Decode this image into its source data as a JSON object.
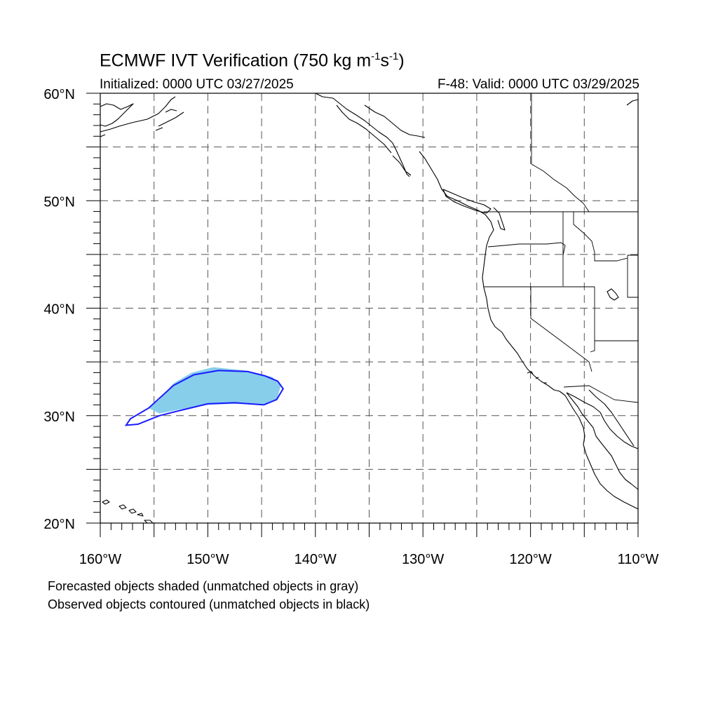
{
  "title": {
    "main": "ECMWF IVT Verification (750 kg m",
    "sup1": "-1",
    "mid": "s",
    "sup2": "-1",
    "end": ")"
  },
  "subtitle": {
    "left": "Initialized: 0000 UTC 03/27/2025",
    "right": "F-48: Valid: 0000 UTC 03/29/2025"
  },
  "footnotes": [
    "Forecasted objects shaded (unmatched objects in gray)",
    "Observed objects contoured (unmatched objects in black)"
  ],
  "map": {
    "lon_range": [
      -160,
      -110
    ],
    "lat_range": [
      20,
      60
    ],
    "grid_lon_step": 5,
    "grid_lat_step": 5,
    "lat_tick_labels": [
      {
        "value": 60,
        "label": "60°N"
      },
      {
        "value": 50,
        "label": "50°N"
      },
      {
        "value": 40,
        "label": "40°N"
      },
      {
        "value": 30,
        "label": "30°N"
      },
      {
        "value": 20,
        "label": "20°N"
      }
    ],
    "lon_tick_labels": [
      {
        "value": -160,
        "label": "160°W"
      },
      {
        "value": -150,
        "label": "150°W"
      },
      {
        "value": -140,
        "label": "140°W"
      },
      {
        "value": -130,
        "label": "130°W"
      },
      {
        "value": -120,
        "label": "120°W"
      },
      {
        "value": -110,
        "label": "110°W"
      }
    ],
    "colors": {
      "forecast_fill": "#87ceeb",
      "observed_contour": "#1a1aff",
      "coastline": "#000000",
      "grid": "#555555"
    },
    "forecast_object": [
      [
        -155.5,
        30.7
      ],
      [
        -154.5,
        31.5
      ],
      [
        -153.2,
        33.0
      ],
      [
        -151.5,
        34.0
      ],
      [
        -149.5,
        34.5
      ],
      [
        -146.5,
        34.2
      ],
      [
        -144.0,
        33.6
      ],
      [
        -143.2,
        32.8
      ],
      [
        -143.6,
        31.5
      ],
      [
        -145.0,
        31.0
      ],
      [
        -147.5,
        31.1
      ],
      [
        -150.0,
        31.0
      ],
      [
        -152.5,
        30.6
      ],
      [
        -154.5,
        30.2
      ]
    ],
    "observed_object": [
      [
        -157.6,
        29.1
      ],
      [
        -157.2,
        29.7
      ],
      [
        -155.5,
        30.7
      ],
      [
        -153.2,
        32.8
      ],
      [
        -151.3,
        33.8
      ],
      [
        -149.0,
        34.2
      ],
      [
        -146.3,
        34.1
      ],
      [
        -144.7,
        33.7
      ],
      [
        -143.5,
        33.2
      ],
      [
        -143.0,
        32.5
      ],
      [
        -143.6,
        31.5
      ],
      [
        -144.8,
        31.0
      ],
      [
        -147.5,
        31.2
      ],
      [
        -150.0,
        31.1
      ],
      [
        -152.5,
        30.5
      ],
      [
        -154.5,
        30.0
      ],
      [
        -156.5,
        29.2
      ]
    ]
  }
}
